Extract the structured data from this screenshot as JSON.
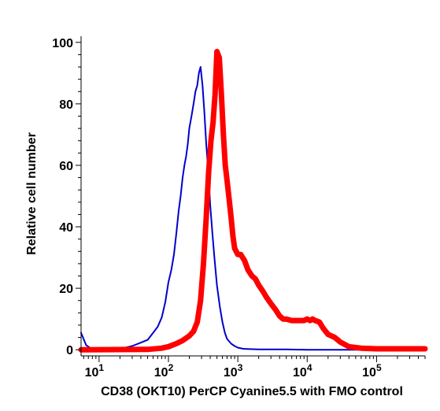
{
  "chart_data": {
    "type": "line",
    "title": "",
    "xlabel": "CD38 (OKT10) PerCP Cyanine5.5 with FMO control",
    "ylabel": "Relative cell number",
    "x_scale": "log",
    "xlim": [
      5.5,
      500000
    ],
    "ylim": [
      -2,
      102
    ],
    "grid": false,
    "legend": "none",
    "x_ticks": [
      {
        "value": 10,
        "base": "10",
        "exp": "1"
      },
      {
        "value": 100,
        "base": "10",
        "exp": "2"
      },
      {
        "value": 1000,
        "base": "10",
        "exp": "3"
      },
      {
        "value": 10000,
        "base": "10",
        "exp": "4"
      },
      {
        "value": 100000,
        "base": "10",
        "exp": "5"
      }
    ],
    "y_ticks": [
      {
        "value": 0,
        "label": "0"
      },
      {
        "value": 20,
        "label": "20"
      },
      {
        "value": 40,
        "label": "40"
      },
      {
        "value": 60,
        "label": "60"
      },
      {
        "value": 80,
        "label": "80"
      },
      {
        "value": 100,
        "label": "100"
      }
    ],
    "series": [
      {
        "color": "#0000cc",
        "width": 2,
        "x": [
          5.5,
          6.5,
          7.5,
          9,
          12,
          16,
          22,
          30,
          40,
          50,
          60,
          70,
          80,
          90,
          100,
          110,
          120,
          130,
          140,
          150,
          160,
          170,
          180,
          190,
          200,
          215,
          230,
          245,
          260,
          275,
          290,
          310,
          330,
          350,
          375,
          400,
          430,
          460,
          500,
          550,
          600,
          650,
          700,
          800,
          900,
          1000,
          1200,
          1500,
          2000,
          5000,
          10000,
          50000,
          100000,
          500000
        ],
        "y": [
          5.5,
          1.5,
          0.5,
          0.2,
          0.3,
          0.2,
          0.5,
          1.2,
          2.3,
          3.2,
          5.5,
          7.5,
          10.5,
          15.5,
          22,
          26,
          31,
          38,
          45,
          50,
          56,
          60,
          63,
          67,
          72,
          76,
          80,
          84,
          86,
          90,
          92,
          86,
          77,
          67,
          58,
          47,
          38,
          30,
          21,
          14,
          9,
          5.5,
          3.5,
          2,
          1.2,
          0.7,
          0.3,
          0.2,
          0.1,
          0.1,
          0,
          0,
          0,
          0
        ]
      },
      {
        "color": "#ff0000",
        "width": 7,
        "x": [
          5.5,
          50,
          80,
          100,
          130,
          160,
          200,
          230,
          260,
          290,
          320,
          350,
          380,
          410,
          440,
          470,
          500,
          540,
          580,
          620,
          660,
          700,
          750,
          800,
          850,
          900,
          1000,
          1100,
          1250,
          1400,
          1600,
          1800,
          2000,
          2300,
          2600,
          3000,
          3500,
          4000,
          4500,
          5000,
          6000,
          7000,
          8000,
          9000,
          10000,
          11000,
          12000,
          13000,
          15000,
          17000,
          20000,
          25000,
          30000,
          40000,
          60000,
          100000,
          200000,
          500000
        ],
        "y": [
          0,
          0.1,
          0.5,
          1,
          2,
          3,
          4.5,
          6,
          9,
          16,
          28,
          43,
          58,
          68,
          74,
          83,
          97,
          95,
          83,
          70,
          60,
          55,
          49,
          43,
          37,
          33,
          31,
          31,
          29,
          26,
          24,
          23,
          21,
          19,
          17,
          15,
          13,
          11,
          10,
          10,
          9.5,
          9.5,
          9.5,
          9.5,
          10,
          9.5,
          10,
          9.5,
          9,
          7,
          5,
          4,
          2.5,
          1,
          0.5,
          0.3,
          0.3,
          0.3
        ]
      }
    ]
  }
}
